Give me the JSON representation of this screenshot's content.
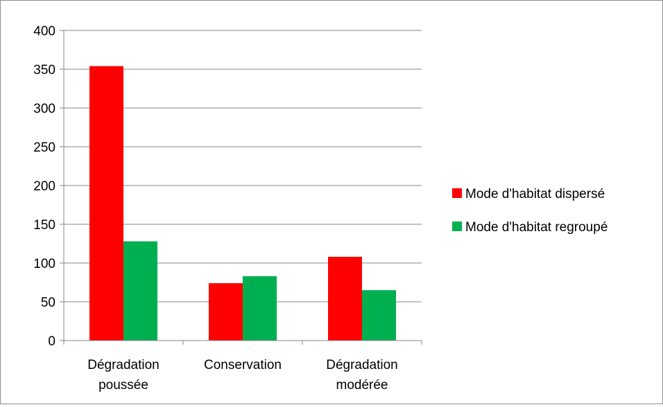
{
  "chart_data": {
    "type": "bar",
    "title": "",
    "xlabel": "",
    "ylabel": "",
    "ylim": [
      0,
      400
    ],
    "yticks": [
      0,
      50,
      100,
      150,
      200,
      250,
      300,
      350,
      400
    ],
    "ytick_labels": [
      "0",
      "50",
      "100",
      "150",
      "200",
      "250",
      "300",
      "350",
      "400"
    ],
    "grid": true,
    "legend_position": "right",
    "categories": [
      [
        "Dégradation",
        "poussée"
      ],
      [
        "Conservation"
      ],
      [
        "Dégradation",
        "modérée"
      ]
    ],
    "series": [
      {
        "name": "Mode d'habitat dispersé",
        "color": "#ff0000",
        "values": [
          354,
          74,
          108
        ]
      },
      {
        "name": "Mode d'habitat regroupé",
        "color": "#00b050",
        "values": [
          128,
          83,
          65
        ]
      }
    ],
    "gridline_color": "#868686",
    "axis_color": "#868686"
  }
}
